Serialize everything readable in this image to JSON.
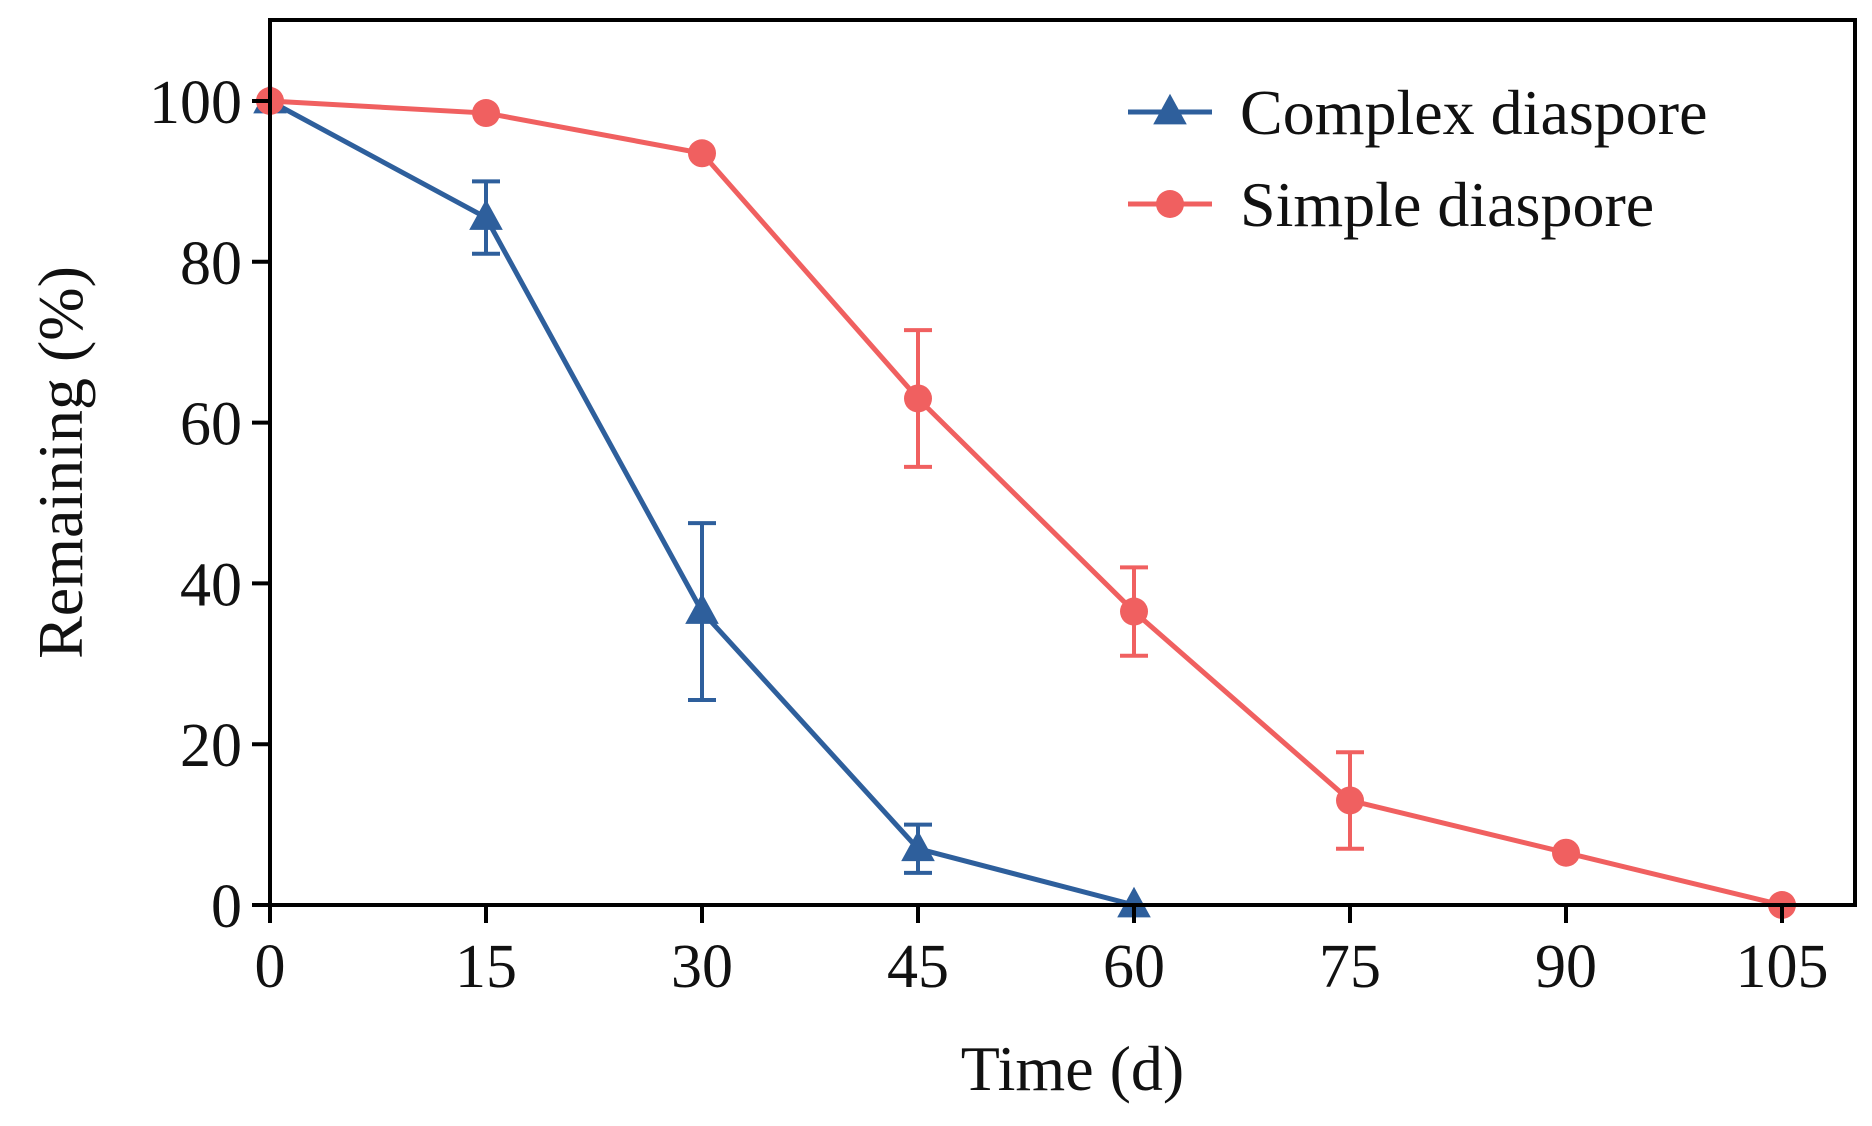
{
  "chart_data": {
    "type": "line",
    "title": "",
    "xlabel": "Time (d)",
    "ylabel": "Remaining (%)",
    "xlim": [
      0,
      105
    ],
    "ylim": [
      0,
      110
    ],
    "xticks": [
      0,
      15,
      30,
      45,
      60,
      75,
      90,
      105
    ],
    "yticks": [
      0,
      20,
      40,
      60,
      80,
      100
    ],
    "grid": false,
    "legend_position": "top-right",
    "series": [
      {
        "name": "Complex diaspore",
        "color": "#2e5f9c",
        "marker": "triangle",
        "x": [
          0,
          15,
          30,
          45,
          60
        ],
        "y": [
          100,
          85.5,
          36.5,
          7,
          0
        ],
        "error": [
          0,
          4.5,
          11,
          3,
          0
        ]
      },
      {
        "name": "Simple diaspore",
        "color": "#f06060",
        "marker": "circle",
        "x": [
          0,
          15,
          30,
          45,
          60,
          75,
          90,
          105
        ],
        "y": [
          100,
          98.5,
          93.5,
          63,
          36.5,
          13,
          6.5,
          0
        ],
        "error": [
          0,
          0,
          0,
          8.5,
          5.5,
          6,
          0,
          0
        ]
      }
    ]
  }
}
